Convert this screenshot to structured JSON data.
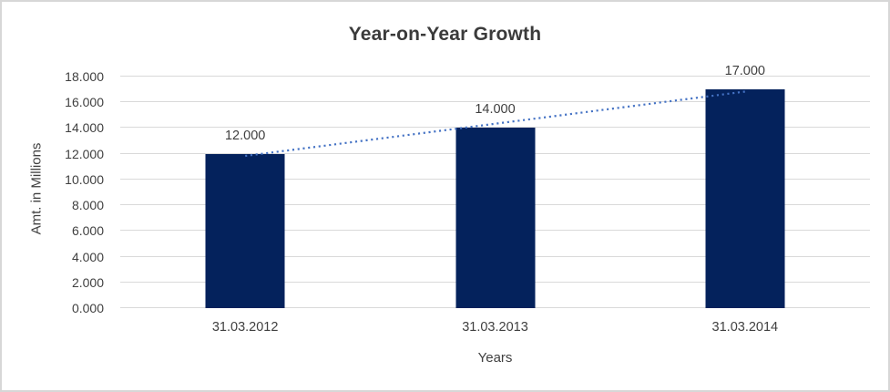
{
  "chart": {
    "title": "Year-on-Year Growth",
    "y_axis_title": "Amt. in Millions",
    "x_axis_title": "Years",
    "colors": {
      "bar": "#04225c",
      "trendline": "#4472c4",
      "gridline": "#d9d9d9",
      "text": "#404040",
      "border": "#d7d7d7",
      "background": "#ffffff"
    }
  },
  "chart_data": {
    "type": "bar",
    "title": "Year-on-Year Growth",
    "xlabel": "Years",
    "ylabel": "Amt. in Millions",
    "categories": [
      "31.03.2012",
      "31.03.2013",
      "31.03.2014"
    ],
    "values": [
      12,
      14,
      17
    ],
    "data_labels": [
      "12.000",
      "14.000",
      "17.000"
    ],
    "y_ticks": [
      "0.000",
      "2.000",
      "4.000",
      "6.000",
      "8.000",
      "10.000",
      "12.000",
      "14.000",
      "16.000",
      "18.000"
    ],
    "ylim": [
      0,
      18
    ],
    "grid": true,
    "legend": false,
    "trendline": {
      "type": "linear",
      "style": "dotted",
      "fitted_values": [
        11.833,
        14.333,
        16.833
      ]
    }
  }
}
